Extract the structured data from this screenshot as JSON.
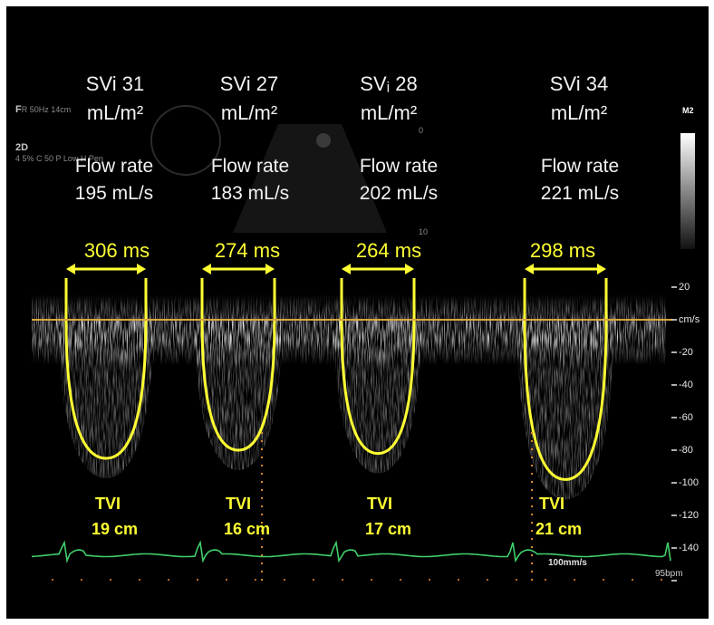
{
  "beats": [
    {
      "svi": "SVi 31",
      "svi_unit": "mL/m²",
      "flow_label": "Flow rate",
      "flow_value": "195 mL/s",
      "duration": "306 ms",
      "tvi_label": "TVI",
      "tvi_value": "19 cm",
      "peak_velocity_cm_s": -85
    },
    {
      "svi": "SVi 27",
      "svi_unit": "mL/m²",
      "flow_label": "Flow rate",
      "flow_value": "183 mL/s",
      "duration": "274 ms",
      "tvi_label": "TVI",
      "tvi_value": "16 cm",
      "peak_velocity_cm_s": -80
    },
    {
      "svi": "SVᵢ 28",
      "svi_unit": "mL/m²",
      "flow_label": "Flow rate",
      "flow_value": "202 mL/s",
      "duration": "264 ms",
      "tvi_label": "TVI",
      "tvi_value": "17 cm",
      "peak_velocity_cm_s": -82
    },
    {
      "svi": "SVi 34",
      "svi_unit": "mL/m²",
      "flow_label": "Flow rate",
      "flow_value": "221 mL/s",
      "duration": "298 ms",
      "tvi_label": "TVI",
      "tvi_value": "21 cm",
      "peak_velocity_cm_s": -98
    }
  ],
  "velocity_scale": {
    "unit": "cm/s",
    "ticks": [
      "20",
      "-20",
      "-40",
      "-60",
      "-80",
      "-100",
      "-120",
      "-140"
    ]
  },
  "sweep_speed": "100mm/s",
  "heart_rate": "95bpm",
  "colorbar_label": "M2",
  "depth_marks": [
    "0",
    "10"
  ],
  "side_keys": [
    {
      "key": "F",
      "value": "R 50Hz 14cm"
    },
    {
      "key": "2D",
      "value": "4 5% C 50 P Low H Pen"
    }
  ],
  "colors": {
    "background": "#000000",
    "trace": "#ffff33",
    "baseline": "#d8a640",
    "ecg": "#3fcf6a",
    "text": "#f2f2f2"
  }
}
